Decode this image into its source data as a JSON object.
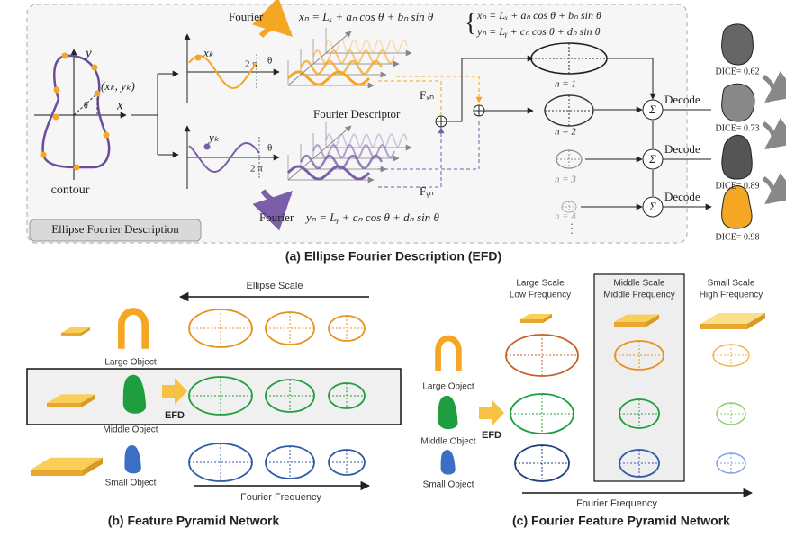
{
  "panel_a": {
    "fourier_top": "Fourier",
    "formula_x": "xₙ = Lₓ + aₙ cos θ + bₙ sin θ",
    "system_x": "xₙ = Lₓ + aₙ cos θ + bₙ sin θ",
    "system_y": "yₙ = Lᵧ + cₙ cos θ + dₙ sin θ",
    "axis_y": "y",
    "axis_x": "x",
    "point": "(xₖ,  yₖ)",
    "angle": "θ",
    "contour": "contour",
    "xk": "xₖ",
    "two_pi_top": "2 π",
    "theta_top": "θ",
    "yk": "yₖ",
    "two_pi_bottom": "2 π",
    "theta_bottom": "θ",
    "descriptor": "Fourier Descriptor",
    "f_x": "Fₓₙ",
    "f_y": "Fᵧₙ",
    "fourier_bottom": "Fourier",
    "formula_y": "yₙ = Lᵧ + cₙ cos θ + dₙ sin θ",
    "orders": [
      "n = 1",
      "n = 2",
      "n = 3",
      "n = 4"
    ],
    "decode": [
      "Decode",
      "Decode",
      "Decode"
    ],
    "dice": [
      "DICE= 0.62",
      "DICE= 0.73",
      "DICE= 0.89",
      "DICE= 0.98"
    ],
    "badge": "Ellipse Fourier Description",
    "caption": "(a) Ellipse Fourier Description (EFD)"
  },
  "panel_b": {
    "ellipse_scale": "Ellipse Scale",
    "objects": [
      "Large Object",
      "Middle Object",
      "Small Object"
    ],
    "efd": "EFD",
    "fourier_frequency": "Fourier Frequency",
    "caption": "(b) Feature Pyramid Network"
  },
  "panel_c": {
    "columns": [
      {
        "scale": "Large Scale",
        "frequency": "Low Frequency"
      },
      {
        "scale": "Middle Scale",
        "frequency": "Middle Frequency"
      },
      {
        "scale": "Small Scale",
        "frequency": "High Frequency"
      }
    ],
    "objects": [
      "Large Object",
      "Middle Object",
      "Small Object"
    ],
    "efd": "EFD",
    "fourier_frequency": "Fourier Frequency",
    "caption": "(c) Fourier Feature Pyramid Network"
  }
}
